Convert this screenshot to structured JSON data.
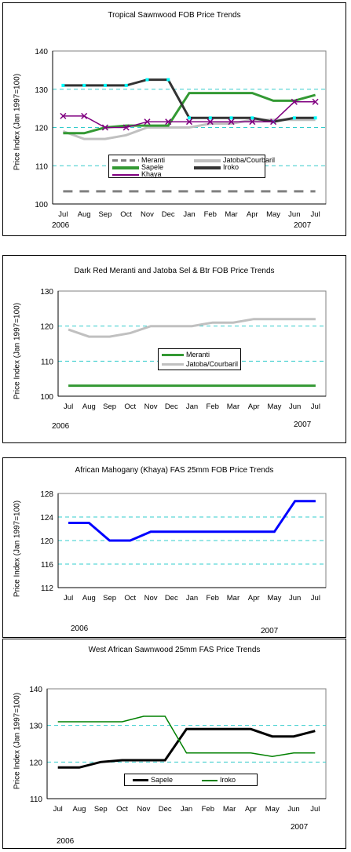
{
  "chart_data": [
    {
      "type": "line",
      "title": "Tropical Sawnwood FOB Price Trends",
      "ylabel": "Price Index (Jan 1997=100)",
      "categories": [
        "Jul",
        "Aug",
        "Sep",
        "Oct",
        "Nov",
        "Dec",
        "Jan",
        "Feb",
        "Mar",
        "Apr",
        "May",
        "Jun",
        "Jul"
      ],
      "year_labels": [
        "2006",
        "2007"
      ],
      "ylim": [
        100,
        140
      ],
      "yticks": [
        100,
        110,
        120,
        130,
        140
      ],
      "grid": "dashed horizontal",
      "legend": "center",
      "series": [
        {
          "name": "Meranti",
          "color": "#808080",
          "style": "dashed",
          "values": [
            103.3,
            103.3,
            103.3,
            103.3,
            103.3,
            103.3,
            103.3,
            103.3,
            103.3,
            103.3,
            103.3,
            103.3,
            103.3
          ]
        },
        {
          "name": "Jatoba/Courbaril",
          "color": "#c0c0c0",
          "style": "solid",
          "values": [
            119,
            117,
            117,
            118,
            120,
            120,
            120,
            121,
            121,
            122,
            122,
            122,
            122
          ]
        },
        {
          "name": "Sapele",
          "color": "#339933",
          "style": "solid",
          "values": [
            118.5,
            118.5,
            120,
            120.5,
            120.5,
            120.5,
            129,
            129,
            129,
            129,
            127,
            127,
            128.5
          ]
        },
        {
          "name": "Iroko",
          "color": "#333333",
          "style": "solid",
          "marker": "cyan-square",
          "values": [
            131,
            131,
            131,
            131,
            132.5,
            132.5,
            122.5,
            122.5,
            122.5,
            122.5,
            121.5,
            122.5,
            122.5
          ]
        },
        {
          "name": "Khaya",
          "color": "#800080",
          "style": "solid",
          "marker": "cross",
          "values": [
            123,
            123,
            120,
            120,
            121.5,
            121.5,
            121.5,
            121.5,
            121.5,
            121.5,
            121.5,
            126.7,
            126.7
          ]
        }
      ]
    },
    {
      "type": "line",
      "title": "Dark Red Meranti and Jatoba Sel & Btr FOB Price Trends",
      "ylabel": "Price Index (Jan 1997=100)",
      "categories": [
        "Jul",
        "Aug",
        "Sep",
        "Oct",
        "Nov",
        "Dec",
        "Jan",
        "Feb",
        "Mar",
        "Apr",
        "May",
        "Jun",
        "Jul"
      ],
      "year_labels": [
        "2006",
        "2007"
      ],
      "ylim": [
        100,
        130
      ],
      "yticks": [
        100,
        110,
        120,
        130
      ],
      "grid": "dashed horizontal",
      "legend": "center",
      "series": [
        {
          "name": "Meranti",
          "color": "#339933",
          "style": "solid",
          "values": [
            103,
            103,
            103,
            103,
            103,
            103,
            103,
            103,
            103,
            103,
            103,
            103,
            103
          ]
        },
        {
          "name": "Jatoba/Courbaril",
          "color": "#c0c0c0",
          "style": "solid",
          "values": [
            119,
            117,
            117,
            118,
            120,
            120,
            120,
            121,
            121,
            122,
            122,
            122,
            122
          ]
        }
      ]
    },
    {
      "type": "line",
      "title": "African Mahogany (Khaya) FAS 25mm FOB Price Trends",
      "ylabel": "Price Index (Jan 1997=100)",
      "categories": [
        "Jul",
        "Aug",
        "Sep",
        "Oct",
        "Nov",
        "Dec",
        "Jan",
        "Feb",
        "Mar",
        "Apr",
        "May",
        "Jun",
        "Jul"
      ],
      "year_labels": [
        "2006",
        "2007"
      ],
      "ylim": [
        112,
        128
      ],
      "yticks": [
        112,
        116,
        120,
        124,
        128
      ],
      "grid": "dashed horizontal",
      "legend": "none",
      "series": [
        {
          "name": "",
          "color": "#0000ff",
          "style": "solid",
          "values": [
            123,
            123,
            120,
            120,
            121.5,
            121.5,
            121.5,
            121.5,
            121.5,
            121.5,
            121.5,
            126.7,
            126.7
          ]
        }
      ]
    },
    {
      "type": "line",
      "title": "West  African Sawnwood 25mm FAS Price Trends",
      "ylabel": "Price Index (Jan 1997=100)",
      "categories": [
        "Jul",
        "Aug",
        "Sep",
        "Oct",
        "Nov",
        "Dec",
        "Jan",
        "Feb",
        "Mar",
        "Apr",
        "May",
        "Jun",
        "Jul"
      ],
      "year_labels": [
        "2006",
        "2007"
      ],
      "ylim": [
        110,
        140
      ],
      "yticks": [
        110,
        120,
        130,
        140
      ],
      "grid": "dashed horizontal",
      "legend": "bottom-center",
      "series": [
        {
          "name": "Sapele",
          "color": "#000000",
          "style": "solid",
          "values": [
            118.5,
            118.5,
            120,
            120.5,
            120.5,
            120.5,
            129,
            129,
            129,
            129,
            127,
            127,
            128.5
          ]
        },
        {
          "name": "Iroko",
          "color": "#008000",
          "style": "solid",
          "values": [
            131,
            131,
            131,
            131,
            132.5,
            132.5,
            122.5,
            122.5,
            122.5,
            122.5,
            121.5,
            122.5,
            122.5
          ]
        }
      ]
    }
  ]
}
